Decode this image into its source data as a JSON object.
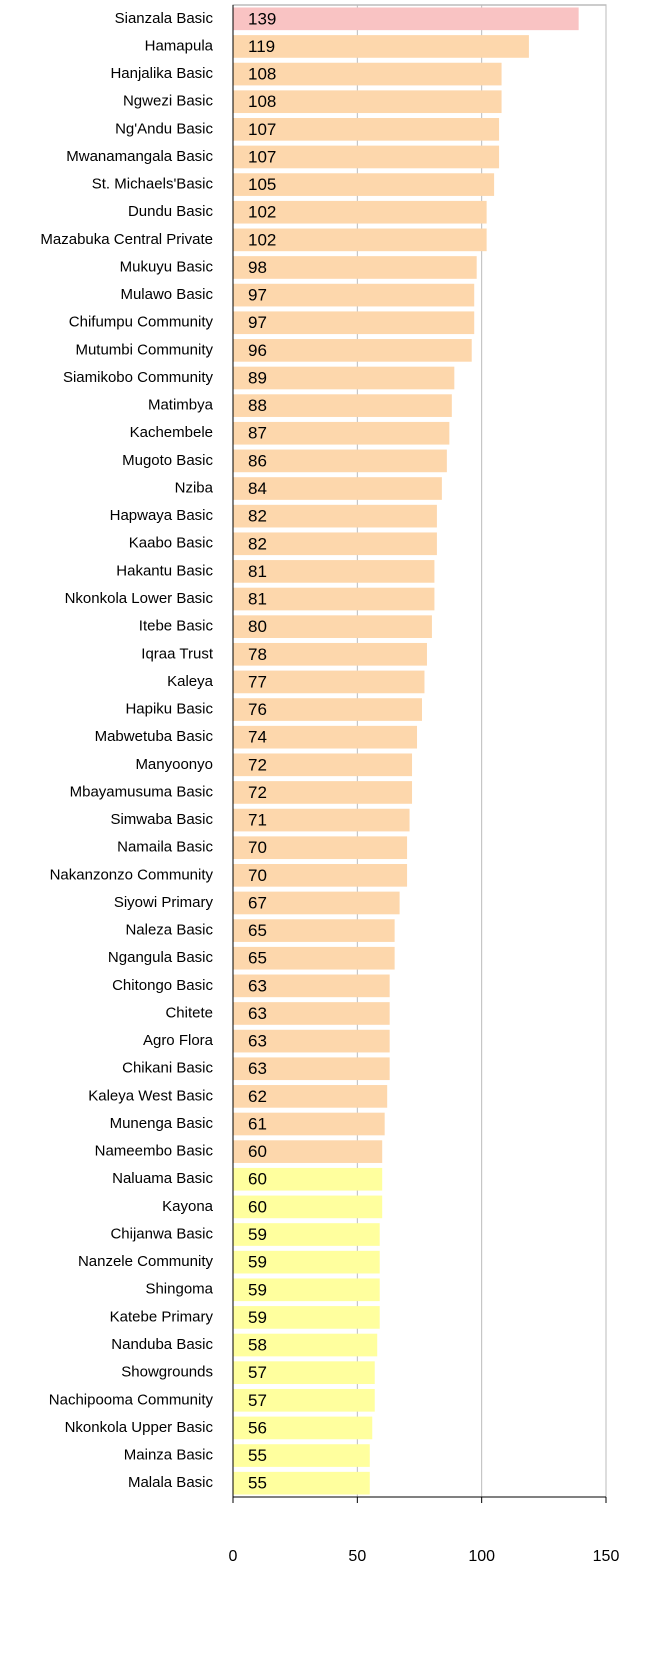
{
  "chart_data": {
    "type": "barh",
    "categories": [
      "Sianzala Basic",
      "Hamapula",
      "Hanjalika Basic",
      "Ngwezi Basic",
      "Ng'Andu Basic",
      "Mwanamangala Basic",
      "St. Michaels'Basic",
      "Dundu Basic",
      "Mazabuka Central Private",
      "Mukuyu Basic",
      "Mulawo Basic",
      "Chifumpu Community",
      "Mutumbi Community",
      "Siamikobo Community",
      "Matimbya",
      "Kachembele",
      "Mugoto Basic",
      "Nziba",
      "Hapwaya Basic",
      "Kaabo Basic",
      "Hakantu Basic",
      "Nkonkola Lower Basic",
      "Itebe Basic",
      "Iqraa Trust",
      "Kaleya",
      "Hapiku Basic",
      "Mabwetuba Basic",
      "Manyoonyo",
      "Mbayamusuma Basic",
      "Simwaba Basic",
      "Namaila Basic",
      "Nakanzonzo Community",
      "Siyowi Primary",
      "Naleza Basic",
      "Ngangula Basic",
      "Chitongo Basic",
      "Chitete",
      "Agro Flora",
      "Chikani Basic",
      "Kaleya West Basic",
      "Munenga Basic",
      "Nameembo Basic",
      "Naluama Basic",
      "Kayona",
      "Chijanwa Basic",
      "Nanzele Community",
      "Shingoma",
      "Katebe Primary",
      "Nanduba Basic",
      "Showgrounds",
      "Nachipooma Community",
      "Nkonkola Upper Basic",
      "Mainza Basic",
      "Malala Basic"
    ],
    "values": [
      139,
      119,
      108,
      108,
      107,
      107,
      105,
      102,
      102,
      98,
      97,
      97,
      96,
      89,
      88,
      87,
      86,
      84,
      82,
      82,
      81,
      81,
      80,
      78,
      77,
      76,
      74,
      72,
      72,
      71,
      70,
      70,
      67,
      65,
      65,
      63,
      63,
      63,
      63,
      62,
      61,
      60,
      60,
      60,
      59,
      59,
      59,
      59,
      58,
      57,
      57,
      56,
      55,
      55
    ],
    "colors": [
      "#f9c3c3",
      "#fdd7ac",
      "#fdd7ac",
      "#fdd7ac",
      "#fdd7ac",
      "#fdd7ac",
      "#fdd7ac",
      "#fdd7ac",
      "#fdd7ac",
      "#fdd7ac",
      "#fdd7ac",
      "#fdd7ac",
      "#fdd7ac",
      "#fdd7ac",
      "#fdd7ac",
      "#fdd7ac",
      "#fdd7ac",
      "#fdd7ac",
      "#fdd7ac",
      "#fdd7ac",
      "#fdd7ac",
      "#fdd7ac",
      "#fdd7ac",
      "#fdd7ac",
      "#fdd7ac",
      "#fdd7ac",
      "#fdd7ac",
      "#fdd7ac",
      "#fdd7ac",
      "#fdd7ac",
      "#fdd7ac",
      "#fdd7ac",
      "#fdd7ac",
      "#fdd7ac",
      "#fdd7ac",
      "#fdd7ac",
      "#fdd7ac",
      "#fdd7ac",
      "#fdd7ac",
      "#fdd7ac",
      "#fdd7ac",
      "#fdd7ac",
      "#ffff9e",
      "#ffff9e",
      "#ffff9e",
      "#ffff9e",
      "#ffff9e",
      "#ffff9e",
      "#ffff9e",
      "#ffff9e",
      "#ffff9e",
      "#ffff9e",
      "#ffff9e",
      "#ffff9e"
    ],
    "xlim": [
      0,
      150
    ],
    "xticks": [
      0,
      50,
      100,
      150
    ],
    "grid": true
  }
}
